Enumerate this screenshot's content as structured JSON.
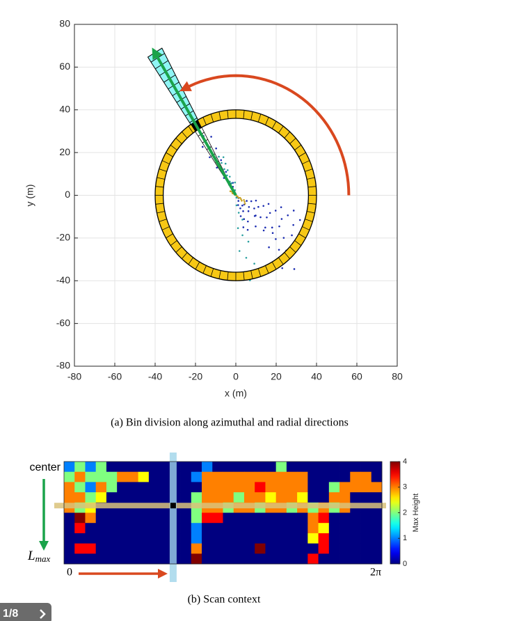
{
  "chart_data": [
    {
      "type": "scatter",
      "xlabel": "x (m)",
      "ylabel": "y (m)",
      "xlim": [
        -80,
        80
      ],
      "ylim": [
        -80,
        80
      ],
      "xticks": [
        -80,
        -60,
        -40,
        -20,
        0,
        20,
        40,
        60,
        80
      ],
      "yticks": [
        -80,
        -60,
        -40,
        -20,
        0,
        20,
        40,
        60,
        80
      ],
      "grid": true,
      "caption": "(a) Bin division along azimuthal and radial directions"
    },
    {
      "type": "heatmap",
      "values": [
        [
          1,
          2,
          1,
          2,
          0,
          0,
          0,
          0,
          0,
          0,
          0,
          0,
          0,
          1,
          0,
          0,
          0,
          0,
          0,
          0,
          2,
          0,
          0,
          0,
          0,
          0,
          0,
          0,
          0,
          0
        ],
        [
          2,
          3,
          2,
          2,
          2,
          3,
          3,
          2.5,
          0,
          0,
          0,
          0,
          1,
          3,
          3,
          3,
          3,
          3,
          3,
          3,
          3,
          3,
          3,
          0,
          0,
          0,
          0,
          3,
          3,
          0
        ],
        [
          3,
          2,
          1,
          3,
          2,
          0,
          0,
          0,
          0,
          0,
          0,
          0,
          0,
          3,
          3,
          3,
          3,
          3,
          3.5,
          3,
          3,
          3,
          3,
          0,
          0,
          2,
          3,
          3,
          3,
          3
        ],
        [
          3,
          3,
          2,
          2.5,
          0,
          0,
          0,
          0,
          0,
          0,
          0,
          0,
          2,
          3,
          3,
          3,
          2,
          3,
          3,
          2.5,
          3,
          3,
          2.5,
          0,
          0,
          3,
          3,
          0,
          0,
          0
        ],
        [
          3,
          2,
          2.5,
          0,
          0,
          0,
          0,
          0,
          0,
          0,
          0,
          0,
          2,
          3,
          3,
          2,
          3,
          3,
          2,
          3,
          3,
          2,
          3,
          2,
          3,
          2,
          3,
          0,
          0,
          0
        ],
        [
          0,
          4,
          3,
          0,
          0,
          0,
          0,
          0,
          0,
          0,
          0,
          0,
          2,
          3.5,
          3.5,
          0,
          0,
          0,
          0,
          0,
          0,
          0,
          0,
          3,
          3.5,
          0,
          0,
          0,
          0,
          0
        ],
        [
          0,
          3.5,
          0,
          0,
          0,
          0,
          0,
          0,
          0,
          0,
          0,
          0,
          1,
          0,
          0,
          0,
          0,
          0,
          0,
          0,
          0,
          0,
          0,
          3,
          2.5,
          0,
          0,
          0,
          0,
          0
        ],
        [
          0,
          0,
          0,
          0,
          0,
          0,
          0,
          0,
          0,
          0,
          0,
          0,
          1,
          0,
          0,
          0,
          0,
          0,
          0,
          0,
          0,
          0,
          0,
          2.5,
          3.5,
          0,
          0,
          0,
          0,
          0
        ],
        [
          0,
          3.5,
          3.5,
          0,
          0,
          0,
          0,
          0,
          0,
          0,
          0,
          0,
          3,
          0,
          0,
          0,
          0,
          0,
          4,
          0,
          0,
          0,
          0,
          0,
          3.5,
          0,
          0,
          0,
          0,
          0
        ],
        [
          0,
          0,
          0,
          0,
          0,
          0,
          0,
          0,
          0,
          0,
          0,
          0,
          4,
          0,
          0,
          0,
          0,
          0,
          0,
          0,
          0,
          0,
          0,
          3.5,
          0,
          0,
          0,
          0,
          0,
          0
        ]
      ],
      "y_start_label": "center",
      "y_end_label": {
        "base": "L",
        "sub": "max"
      },
      "x_start_label": "0",
      "x_end_label": "2π",
      "colorbar": {
        "label": "Max Height",
        "lim": [
          0,
          4
        ],
        "ticks": [
          0,
          1,
          2,
          3,
          4
        ]
      },
      "caption": "(b) Scan context"
    }
  ],
  "page_indicator": "1/8"
}
